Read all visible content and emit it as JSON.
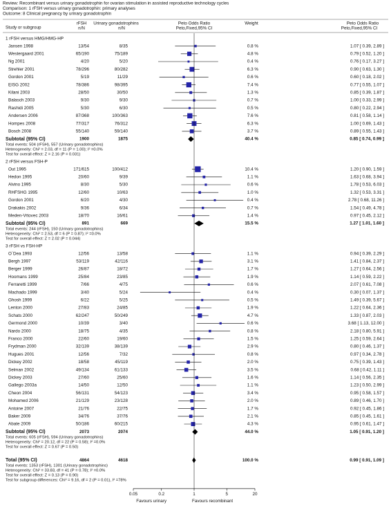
{
  "chart_data": {
    "type": "forest",
    "review": "Review:  Recombinant versus urinary gonadotrophin for ovarian stimulation in assisted reproductive technology cycles",
    "comparison": "Comparison:  1 rFSH versus urinary gonadotrophin: primary analyses",
    "outcome": "Outcome:  8 Clinical pregnancy by urinary gonadotrophin",
    "columns": {
      "study": "Study or subgroup",
      "rfsh": "rFSH",
      "rfsh_unit": "n/N",
      "urinary": "Urinary gonadotrophins",
      "urinary_unit": "n/N",
      "plot": "Peto Odds Ratio",
      "plot_method": "Peto,Fixed,95% CI",
      "weight": "Weight",
      "effect": "Peto Odds Ratio",
      "effect_method": "Peto,Fixed,95% CI"
    },
    "xlim": [
      0.05,
      20
    ],
    "xticks": [
      0.05,
      0.2,
      1,
      5,
      20
    ],
    "log_x": true,
    "reference_line": 1,
    "marker_color": "#2424a8",
    "favours_left": "Favours urinary",
    "favours_right": "Favours recombinant",
    "groups": [
      {
        "name": "1 rFSH versus HMG/HMG-HP",
        "studies": [
          {
            "study": "Jansen 1998",
            "rfsh": "13/54",
            "urinary": "8/35",
            "weight": 0.8,
            "weight_label": "0.8 %",
            "or": 1.07,
            "lo": 0.39,
            "hi": 2.89,
            "or_label": "1.07 [ 0.39, 2.89 ]"
          },
          {
            "study": "Westergaard 2001",
            "rfsh": "65/190",
            "urinary": "75/189",
            "weight": 4.8,
            "weight_label": "4.8 %",
            "or": 0.79,
            "lo": 0.52,
            "hi": 1.2,
            "or_label": "0.79 [ 0.52, 1.20 ]"
          },
          {
            "study": "Ng 2001",
            "rfsh": "4/20",
            "urinary": "5/20",
            "weight": 0.4,
            "weight_label": "0.4 %",
            "or": 0.76,
            "lo": 0.17,
            "hi": 3.27,
            "or_label": "0.76 [ 0.17, 3.27 ]"
          },
          {
            "study": "Strehler 2001",
            "rfsh": "78/296",
            "urinary": "80/282",
            "weight": 6.3,
            "weight_label": "6.3 %",
            "or": 0.9,
            "lo": 0.63,
            "hi": 1.3,
            "or_label": "0.90 [ 0.63, 1.30 ]"
          },
          {
            "study": "Gordon 2001",
            "rfsh": "5/19",
            "urinary": "11/29",
            "weight": 0.6,
            "weight_label": "0.6 %",
            "or": 0.6,
            "lo": 0.18,
            "hi": 2.02,
            "or_label": "0.60 [ 0.18, 2.02 ]"
          },
          {
            "study": "EISG 2002",
            "rfsh": "78/386",
            "urinary": "98/395",
            "weight": 7.4,
            "weight_label": "7.4 %",
            "or": 0.77,
            "lo": 0.55,
            "hi": 1.07,
            "or_label": "0.77 [ 0.55, 1.07 ]"
          },
          {
            "study": "Kilani 2003",
            "rfsh": "28/50",
            "urinary": "30/50",
            "weight": 1.3,
            "weight_label": "1.3 %",
            "or": 0.85,
            "lo": 0.39,
            "hi": 1.87,
            "or_label": "0.85 [ 0.39, 1.87 ]"
          },
          {
            "study": "Balasch 2003",
            "rfsh": "9/30",
            "urinary": "9/30",
            "weight": 0.7,
            "weight_label": "0.7 %",
            "or": 1.0,
            "lo": 0.33,
            "hi": 2.99,
            "or_label": "1.00 [ 0.33, 2.99 ]"
          },
          {
            "study": "Rashidi 2005",
            "rfsh": "5/30",
            "urinary": "6/30",
            "weight": 0.5,
            "weight_label": "0.5 %",
            "or": 0.8,
            "lo": 0.22,
            "hi": 2.94,
            "or_label": "0.80 [ 0.22, 2.94 ]"
          },
          {
            "study": "Andersen 2006",
            "rfsh": "87/368",
            "urinary": "100/363",
            "weight": 7.6,
            "weight_label": "7.6 %",
            "or": 0.81,
            "lo": 0.58,
            "hi": 1.14,
            "or_label": "0.81 [ 0.58, 1.14 ]"
          },
          {
            "study": "Hompes 2008",
            "rfsh": "77/317",
            "urinary": "76/312",
            "weight": 6.3,
            "weight_label": "6.3 %",
            "or": 1.0,
            "lo": 0.69,
            "hi": 1.43,
            "or_label": "1.00 [ 0.69, 1.43 ]"
          },
          {
            "study": "Bosch 2008",
            "rfsh": "55/140",
            "urinary": "59/140",
            "weight": 3.7,
            "weight_label": "3.7 %",
            "or": 0.89,
            "lo": 0.55,
            "hi": 1.43,
            "or_label": "0.89 [ 0.55, 1.43 ]"
          }
        ],
        "subtotal": {
          "label": "Subtotal (95% CI)",
          "rfsh": 1900,
          "urinary": 1875,
          "weight": 40.4,
          "weight_label": "40.4 %",
          "or": 0.85,
          "lo": 0.74,
          "hi": 0.99,
          "or_label": "0.85 [ 0.74, 0.99 ]",
          "notes": [
            "Total events: 504 (rFSH), 557 (Urinary gonadotrophins)",
            "Heterogeneity: Chi² = 2.03, df = 11 (P = 1.00); I² =0.0%",
            "Test for overall effect: Z = 2.16 (P = 0.031)"
          ]
        }
      },
      {
        "name": "2 rFSH versus FSH-P",
        "studies": [
          {
            "study": "Out 1995",
            "rfsh": "171/615",
            "urinary": "100/412",
            "weight": 10.4,
            "weight_label": "10.4 %",
            "or": 1.2,
            "lo": 0.9,
            "hi": 1.59,
            "or_label": "1.20 [ 0.90, 1.59 ]"
          },
          {
            "study": "Hedon 1995",
            "rfsh": "20/60",
            "urinary": "9/39",
            "weight": 1.1,
            "weight_label": "1.1 %",
            "or": 1.63,
            "lo": 0.68,
            "hi": 3.94,
            "or_label": "1.63 [ 0.68, 3.94 ]"
          },
          {
            "study": "Alvino 1995",
            "rfsh": "8/30",
            "urinary": "5/30",
            "weight": 0.6,
            "weight_label": "0.6 %",
            "or": 1.78,
            "lo": 0.53,
            "hi": 6.03,
            "or_label": "1.78 [ 0.53, 6.03 ]"
          },
          {
            "study": "RHFSHG 1995",
            "rfsh": "12/60",
            "urinary": "10/63",
            "weight": 1.0,
            "weight_label": "1.0 %",
            "or": 1.32,
            "lo": 0.53,
            "hi": 3.31,
            "or_label": "1.32 [ 0.53, 3.31 ]"
          },
          {
            "study": "Gordon 2001",
            "rfsh": "6/20",
            "urinary": "4/30",
            "weight": 0.4,
            "weight_label": "0.4 %",
            "or": 2.78,
            "lo": 0.68,
            "hi": 11.26,
            "or_label": "2.78 [ 0.68, 11.26 ]"
          },
          {
            "study": "Drakakis 2002",
            "rfsh": "9/36",
            "urinary": "6/34",
            "weight": 0.7,
            "weight_label": "0.7 %",
            "or": 1.54,
            "lo": 0.49,
            "hi": 4.78,
            "or_label": "1.54 [ 0.49, 4.78 ]"
          },
          {
            "study": "Meden-Vrtovec 2003",
            "rfsh": "18/70",
            "urinary": "16/61",
            "weight": 1.4,
            "weight_label": "1.4 %",
            "or": 0.97,
            "lo": 0.45,
            "hi": 2.12,
            "or_label": "0.97 [ 0.45, 2.12 ]"
          }
        ],
        "subtotal": {
          "label": "Subtotal (95% CI)",
          "rfsh": 891,
          "urinary": 669,
          "weight": 15.5,
          "weight_label": "15.5 %",
          "or": 1.27,
          "lo": 1.01,
          "hi": 1.6,
          "or_label": "1.27 [ 1.01, 1.60 ]",
          "notes": [
            "Total events: 244 (rFSH), 150 (Urinary gonadotrophins)",
            "Heterogeneity: Chi² = 2.53, df = 6 (P = 0.87); I² =0.0%",
            "Test for overall effect: Z = 2.02 (P = 0.044)"
          ]
        }
      },
      {
        "name": "3 rFSH vs FSH-HP",
        "studies": [
          {
            "study": "O`Dea 1993",
            "rfsh": "12/56",
            "urinary": "13/58",
            "weight": 1.1,
            "weight_label": "1.1 %",
            "or": 0.94,
            "lo": 0.39,
            "hi": 2.29,
            "or_label": "0.94 [ 0.39, 2.29 ]"
          },
          {
            "study": "Bergh 1997",
            "rfsh": "53/119",
            "urinary": "42/116",
            "weight": 3.1,
            "weight_label": "3.1 %",
            "or": 1.41,
            "lo": 0.84,
            "hi": 2.37,
            "or_label": "1.41 [ 0.84, 2.37 ]"
          },
          {
            "study": "Berger 1999",
            "rfsh": "26/87",
            "urinary": "18/72",
            "weight": 1.7,
            "weight_label": "1.7 %",
            "or": 1.27,
            "lo": 0.64,
            "hi": 2.56,
            "or_label": "1.27 [ 0.64, 2.56 ]"
          },
          {
            "study": "Hoomans 1999",
            "rfsh": "25/84",
            "urinary": "23/85",
            "weight": 1.9,
            "weight_label": "1.9 %",
            "or": 1.14,
            "lo": 0.59,
            "hi": 2.22,
            "or_label": "1.14 [ 0.59, 2.22 ]"
          },
          {
            "study": "Ferraretti 1999",
            "rfsh": "7/66",
            "urinary": "4/75",
            "weight": 0.6,
            "weight_label": "0.6 %",
            "or": 2.07,
            "lo": 0.61,
            "hi": 7.08,
            "or_label": "2.07 [ 0.61, 7.08 ]"
          },
          {
            "study": "Machado 1999",
            "rfsh": "3/40",
            "urinary": "5/24",
            "weight": 0.4,
            "weight_label": "0.4 %",
            "or": 0.3,
            "lo": 0.07,
            "hi": 1.37,
            "or_label": "0.30 [ 0.07, 1.37 ]"
          },
          {
            "study": "Ghosh 1999",
            "rfsh": "6/22",
            "urinary": "5/25",
            "weight": 0.5,
            "weight_label": "0.5 %",
            "or": 1.49,
            "lo": 0.39,
            "hi": 5.67,
            "or_label": "1.49 [ 0.39, 5.67 ]"
          },
          {
            "study": "Lenton 2000",
            "rfsh": "27/83",
            "urinary": "24/85",
            "weight": 1.9,
            "weight_label": "1.9 %",
            "or": 1.22,
            "lo": 0.64,
            "hi": 2.36,
            "or_label": "1.22 [ 0.64, 2.36 ]"
          },
          {
            "study": "Schats 2000",
            "rfsh": "62/247",
            "urinary": "50/249",
            "weight": 4.7,
            "weight_label": "4.7 %",
            "or": 1.33,
            "lo": 0.87,
            "hi": 2.03,
            "or_label": "1.33 [ 0.87, 2.03 ]"
          },
          {
            "study": "Germond 2000",
            "rfsh": "10/39",
            "urinary": "3/40",
            "weight": 0.6,
            "weight_label": "0.6 %",
            "or": 3.68,
            "lo": 1.13,
            "hi": 12.0,
            "or_label": "3.68 [ 1.13, 12.00 ]"
          },
          {
            "study": "Nardo 2000",
            "rfsh": "18/75",
            "urinary": "4/35",
            "weight": 0.8,
            "weight_label": "0.8 %",
            "or": 2.18,
            "lo": 0.8,
            "hi": 5.91,
            "or_label": "2.18 [ 0.80, 5.91 ]"
          },
          {
            "study": "Franco 2000",
            "rfsh": "22/60",
            "urinary": "19/60",
            "weight": 1.5,
            "weight_label": "1.5 %",
            "or": 1.25,
            "lo": 0.59,
            "hi": 2.64,
            "or_label": "1.25 [ 0.59, 2.64 ]"
          },
          {
            "study": "Frydman 2000",
            "rfsh": "32/139",
            "urinary": "38/139",
            "weight": 2.9,
            "weight_label": "2.9 %",
            "or": 0.8,
            "lo": 0.46,
            "hi": 1.37,
            "or_label": "0.80 [ 0.46, 1.37 ]"
          },
          {
            "study": "Hugues 2001",
            "rfsh": "12/56",
            "urinary": "7/32",
            "weight": 0.8,
            "weight_label": "0.8 %",
            "or": 0.97,
            "lo": 0.34,
            "hi": 2.78,
            "or_label": "0.97 [ 0.34, 2.78 ]"
          },
          {
            "study": "Dickey 2002",
            "rfsh": "18/58",
            "urinary": "45/119",
            "weight": 2.0,
            "weight_label": "2.0 %",
            "or": 0.75,
            "lo": 0.39,
            "hi": 1.43,
            "or_label": "0.75 [ 0.39, 1.43 ]"
          },
          {
            "study": "Selman 2002",
            "rfsh": "49/134",
            "urinary": "61/133",
            "weight": 3.5,
            "weight_label": "3.5 %",
            "or": 0.68,
            "lo": 0.42,
            "hi": 1.11,
            "or_label": "0.68 [ 0.42, 1.11 ]"
          },
          {
            "study": "Dickey 2003",
            "rfsh": "27/60",
            "urinary": "25/60",
            "weight": 1.6,
            "weight_label": "1.6 %",
            "or": 1.14,
            "lo": 0.56,
            "hi": 2.35,
            "or_label": "1.14 [ 0.56, 2.35 ]"
          },
          {
            "study": "Gallego 2003a",
            "rfsh": "14/50",
            "urinary": "12/50",
            "weight": 1.1,
            "weight_label": "1.1 %",
            "or": 1.23,
            "lo": 0.5,
            "hi": 2.99,
            "or_label": "1.23 [ 0.50, 2.99 ]"
          },
          {
            "study": "Cheon 2004",
            "rfsh": "56/131",
            "urinary": "54/123",
            "weight": 3.4,
            "weight_label": "3.4 %",
            "or": 0.95,
            "lo": 0.58,
            "hi": 1.57,
            "or_label": "0.95 [ 0.58, 1.57 ]"
          },
          {
            "study": "Mohamed 2006",
            "rfsh": "21/129",
            "urinary": "23/128",
            "weight": 2.0,
            "weight_label": "2.0 %",
            "or": 0.89,
            "lo": 0.46,
            "hi": 1.7,
            "or_label": "0.89 [ 0.46, 1.70 ]"
          },
          {
            "study": "Antoine 2007",
            "rfsh": "21/76",
            "urinary": "22/75",
            "weight": 1.7,
            "weight_label": "1.7 %",
            "or": 0.92,
            "lo": 0.45,
            "hi": 1.86,
            "or_label": "0.92 [ 0.45, 1.86 ]"
          },
          {
            "study": "Baker 2009",
            "rfsh": "34/76",
            "urinary": "37/76",
            "weight": 2.1,
            "weight_label": "2.1 %",
            "or": 0.85,
            "lo": 0.45,
            "hi": 1.61,
            "or_label": "0.85 [ 0.45, 1.61 ]"
          },
          {
            "study": "Abate 2009",
            "rfsh": "50/186",
            "urinary": "60/215",
            "weight": 4.3,
            "weight_label": "4.3 %",
            "or": 0.95,
            "lo": 0.61,
            "hi": 1.47,
            "or_label": "0.95 [ 0.61, 1.47 ]"
          }
        ],
        "subtotal": {
          "label": "Subtotal (95% CI)",
          "rfsh": 2073,
          "urinary": 2074,
          "weight": 44.0,
          "weight_label": "44.0 %",
          "or": 1.05,
          "lo": 0.91,
          "hi": 1.2,
          "or_label": "1.05 [ 0.91, 1.20 ]",
          "notes": [
            "Total events: 605 (rFSH), 594 (Urinary gonadotrophins)",
            "Heterogeneity: Chi² = 20.12, df = 22 (P = 0.58); I² =0.0%",
            "Test for overall effect: Z = 0.67 (P = 0.50)"
          ]
        }
      }
    ],
    "total": {
      "label": "Total (95% CI)",
      "rfsh": 4864,
      "urinary": 4618,
      "weight": 100.0,
      "weight_label": "100.0 %",
      "or": 0.99,
      "lo": 0.91,
      "hi": 1.09,
      "or_label": "0.99 [ 0.91, 1.09 ]",
      "notes": [
        "Total events: 1353 (rFSH), 1301 (Urinary gonadotrophins)",
        "Heterogeneity: Chi² = 33.83, df = 41 (P = 0.78); I² =0.0%",
        "Test for overall effect: Z = 0.13 (P = 0.90)",
        "Test for subgroup differences: Chi² = 9.16, df = 2 (P = 0.01), I² =78%"
      ]
    }
  }
}
